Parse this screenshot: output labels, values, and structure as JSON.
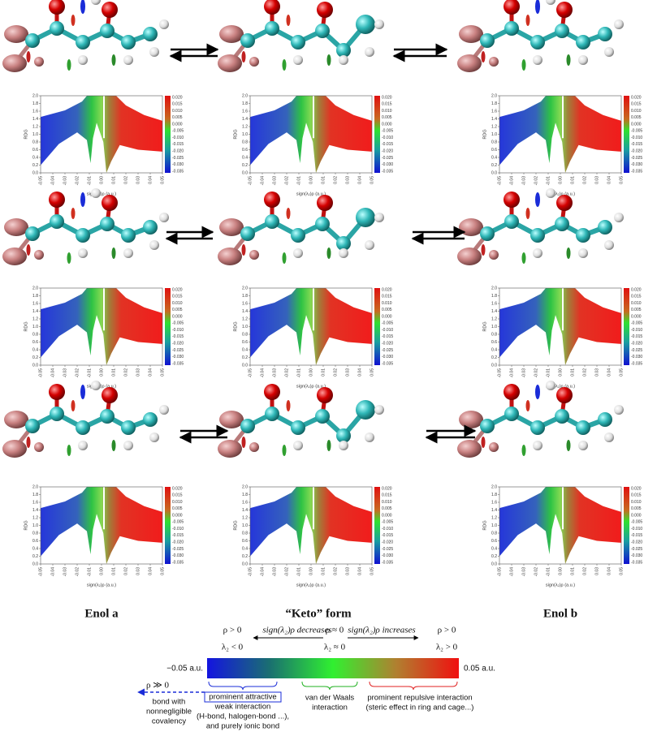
{
  "columns": [
    {
      "label": "Enol a"
    },
    {
      "label": "“Keto” form"
    },
    {
      "label": "Enol b"
    }
  ],
  "rdg_plot": {
    "y_axis_label": "RDG",
    "x_axis_label": "sign(λ₂)ρ (a.u.)",
    "yticks": [
      "0.0",
      "0.2",
      "0.4",
      "0.6",
      "0.8",
      "1.0",
      "1.2",
      "1.4",
      "1.6",
      "1.8",
      "2.0"
    ],
    "xticks": [
      "-0.05",
      "-0.04",
      "-0.03",
      "-0.02",
      "-0.01",
      "0.00",
      "0.01",
      "0.02",
      "0.03",
      "0.04",
      "0.05"
    ],
    "colorbar_ticks": [
      "0.020",
      "0.015",
      "0.010",
      "0.005",
      "0.000",
      "-0.005",
      "-0.010",
      "-0.015",
      "-0.020",
      "-0.025",
      "-0.030",
      "-0.035"
    ]
  },
  "legend": {
    "rho_left": "ρ > 0",
    "decreases": "sign(λ₂)ρ decreases",
    "rho_mid": "ρ ≈ 0",
    "increases": "sign(λ₂)ρ increases",
    "rho_right": "ρ > 0",
    "lambda_left": "λ₂ < 0",
    "lambda_mid": "λ₂ ≈ 0",
    "lambda_right": "λ₂ > 0",
    "min_label": "−0.05 a.u.",
    "max_label": "0.05 a.u.",
    "rho_strong": "ρ ≫ 0",
    "covalency": [
      "bond with",
      "nonnegligible",
      "covalency"
    ],
    "attractive": [
      "prominent attractive",
      "weak interaction",
      "(H-bond, halogen-bond ...),",
      "and purely ionic bond"
    ],
    "vdw": [
      "van der Waals",
      "interaction"
    ],
    "repulsive": [
      "prominent repulsive interaction",
      "(steric effect in ring and cage...)"
    ]
  }
}
